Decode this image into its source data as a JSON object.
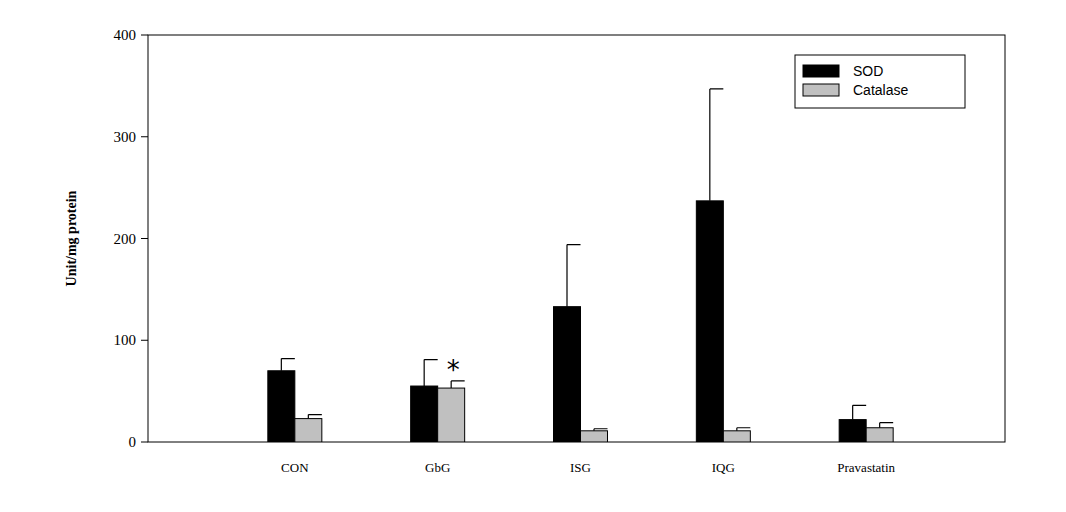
{
  "chart_data": {
    "type": "bar",
    "y_label": "Unit/mg protein",
    "categories": [
      "CON",
      "GbG",
      "ISG",
      "IQG",
      "Pravastatin"
    ],
    "series": [
      {
        "name": "SOD",
        "color": "#000000",
        "values": [
          70,
          55,
          133,
          237,
          22
        ],
        "errors": [
          12,
          26,
          61,
          110,
          14
        ]
      },
      {
        "name": "Catalase",
        "color": "#c0c0c0",
        "values": [
          23,
          53,
          11,
          11,
          14
        ],
        "errors": [
          4,
          7,
          2,
          3,
          5
        ]
      }
    ],
    "ylim": [
      0,
      400
    ],
    "yticks": [
      0,
      100,
      200,
      300,
      400
    ],
    "grid": false,
    "legend": "upper right",
    "annotations": [
      {
        "text": "*",
        "category": "GbG",
        "series": "Catalase"
      }
    ]
  }
}
